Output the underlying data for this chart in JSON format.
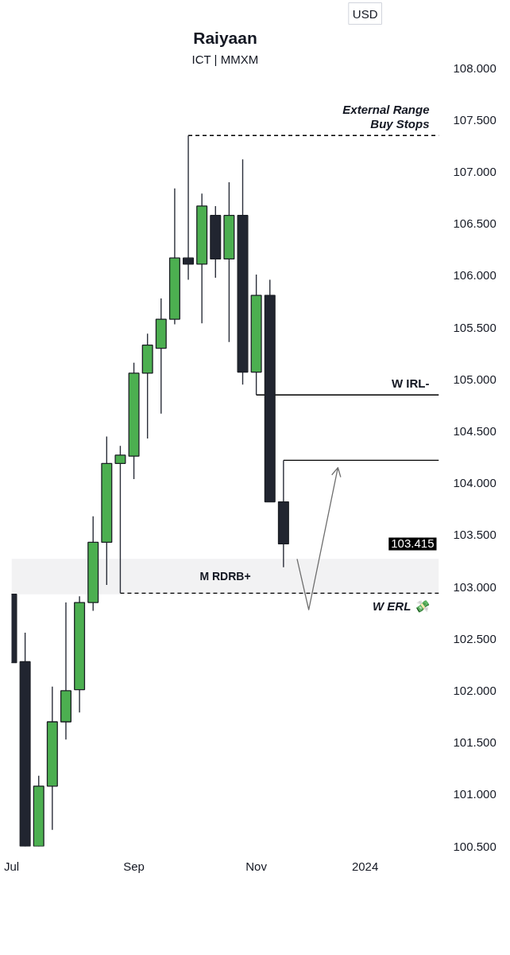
{
  "chart_data": {
    "type": "candlestick",
    "title": "Raiyaan",
    "subtitle": "ICT | MMXM",
    "ylabel": "USD",
    "x": [
      "2023-07-03",
      "2023-07-10",
      "2023-07-17",
      "2023-07-24",
      "2023-07-31",
      "2023-08-07",
      "2023-08-14",
      "2023-08-21",
      "2023-08-28",
      "2023-09-04",
      "2023-09-11",
      "2023-09-18",
      "2023-09-25",
      "2023-10-02",
      "2023-10-09",
      "2023-10-16",
      "2023-10-23",
      "2023-10-30",
      "2023-11-06",
      "2023-11-13",
      "2023-11-20"
    ],
    "ohlc": [
      [
        102.93,
        102.93,
        102.27,
        102.27
      ],
      [
        102.28,
        102.56,
        100.5,
        100.5
      ],
      [
        100.5,
        101.18,
        100.5,
        101.08
      ],
      [
        101.08,
        102.04,
        100.66,
        101.7
      ],
      [
        101.7,
        102.85,
        101.53,
        102.0
      ],
      [
        102.01,
        102.91,
        101.79,
        102.85
      ],
      [
        102.85,
        103.68,
        102.77,
        103.43
      ],
      [
        103.43,
        104.45,
        103.02,
        104.19
      ],
      [
        104.19,
        104.36,
        102.94,
        104.27
      ],
      [
        104.26,
        105.16,
        104.04,
        105.06
      ],
      [
        105.06,
        105.44,
        104.43,
        105.33
      ],
      [
        105.3,
        105.78,
        104.67,
        105.58
      ],
      [
        105.58,
        106.84,
        105.53,
        106.17
      ],
      [
        106.17,
        107.35,
        105.96,
        106.11
      ],
      [
        106.11,
        106.79,
        105.54,
        106.67
      ],
      [
        106.58,
        106.67,
        105.98,
        106.16
      ],
      [
        106.16,
        106.9,
        105.36,
        106.58
      ],
      [
        106.58,
        107.12,
        104.95,
        105.07
      ],
      [
        105.07,
        106.01,
        104.85,
        105.81
      ],
      [
        105.81,
        105.96,
        103.82,
        103.82
      ],
      [
        103.82,
        104.22,
        103.19,
        103.415
      ]
    ],
    "colors": [
      "#212530",
      "#212530",
      "#4caf50",
      "#4caf50",
      "#4caf50",
      "#4caf50",
      "#4caf50",
      "#4caf50",
      "#4caf50",
      "#4caf50",
      "#4caf50",
      "#4caf50",
      "#4caf50",
      "#212530",
      "#4caf50",
      "#212530",
      "#4caf50",
      "#212530",
      "#4caf50",
      "#212530",
      "#212530"
    ],
    "series": [
      {
        "type": "line",
        "name": "External Range Buy Stops",
        "color": "#000000",
        "line_style": "dashed",
        "x": [
          "2023-10-02",
          "2024-02-08"
        ],
        "values": [
          107.35,
          107.35
        ]
      },
      {
        "type": "line",
        "name": "W IRL-",
        "color": "#000000",
        "line_style": "solid",
        "x": [
          "2023-11-06",
          "2024-02-08"
        ],
        "values": [
          104.85,
          104.85
        ]
      },
      {
        "type": "line",
        "color": "#000000",
        "line_style": "solid",
        "x": [
          "2023-11-20",
          "2024-02-08"
        ],
        "values": [
          104.22,
          104.22
        ]
      },
      {
        "type": "line",
        "name": "W ERL 💸",
        "color": "#000000",
        "line_style": "dashed",
        "x": [
          "2023-08-28",
          "2024-02-08"
        ],
        "values": [
          102.94,
          102.94
        ]
      },
      {
        "type": "line",
        "color": "#6e6e6e",
        "line_style": "solid",
        "x": [
          "2023-11-27",
          "2023-12-03",
          "2023-12-18"
        ],
        "values": [
          103.27,
          102.78,
          104.15
        ]
      }
    ],
    "bands": [
      {
        "axis": "y",
        "from": 102.93,
        "to": 103.27,
        "label": "M RDRB+",
        "color": "#f2f2f3"
      }
    ],
    "annotations": [
      "103.415"
    ],
    "xlim": [
      "2023-07-03",
      "2024-02-08"
    ],
    "ylim": [
      100.5,
      108
    ],
    "xticks": [
      {
        "value": "2023-07-03",
        "label": "Jul"
      },
      {
        "value": "2023-09-04",
        "label": "Sep"
      },
      {
        "value": "2023-11-06",
        "label": "Nov"
      },
      {
        "value": "2024-01-01",
        "label": "2024"
      }
    ],
    "yticks": [
      {
        "value": 100.5,
        "label": "100.500"
      },
      {
        "value": 101,
        "label": "101.000"
      },
      {
        "value": 101.5,
        "label": "101.500"
      },
      {
        "value": 102,
        "label": "102.000"
      },
      {
        "value": 102.5,
        "label": "102.500"
      },
      {
        "value": 103,
        "label": "103.000"
      },
      {
        "value": 103.5,
        "label": "103.500"
      },
      {
        "value": 104,
        "label": "104.000"
      },
      {
        "value": 104.5,
        "label": "104.500"
      },
      {
        "value": 105,
        "label": "105.000"
      },
      {
        "value": 105.5,
        "label": "105.500"
      },
      {
        "value": 106,
        "label": "106.000"
      },
      {
        "value": 106.5,
        "label": "106.500"
      },
      {
        "value": 107,
        "label": "107.000"
      },
      {
        "value": 107.5,
        "label": "107.500"
      },
      {
        "value": 108,
        "label": "108.000"
      }
    ]
  }
}
